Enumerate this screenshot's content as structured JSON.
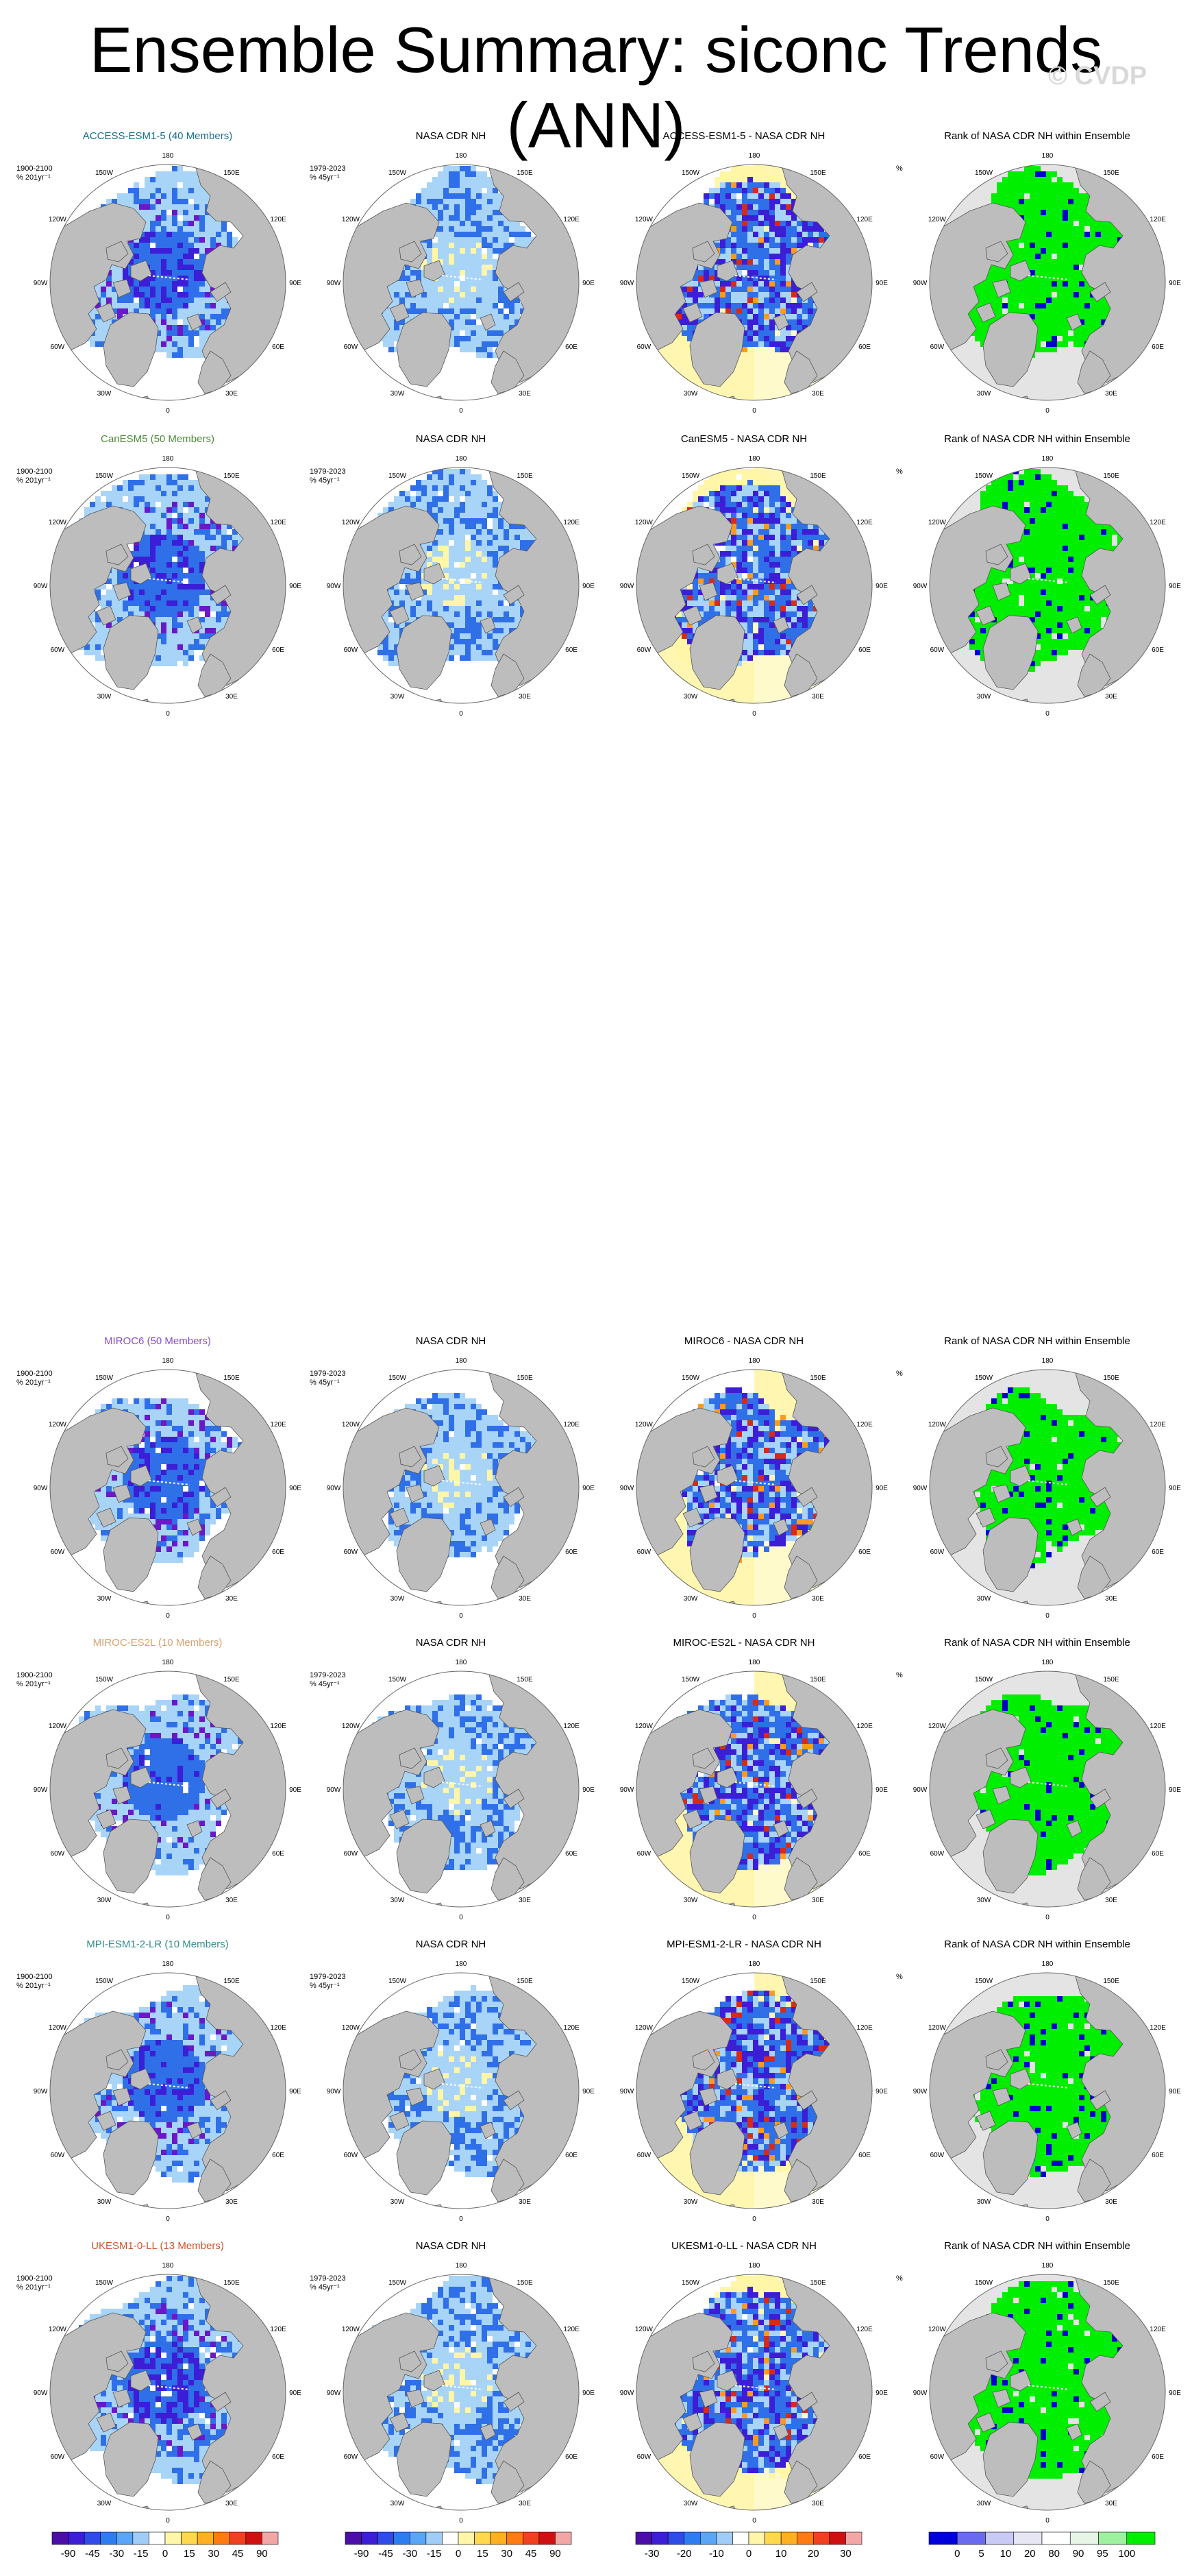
{
  "title": "Ensemble Summary: siconc Trends (ANN)",
  "watermark": "© CVDP",
  "longitude_labels": [
    "180",
    "150E",
    "120E",
    "90E",
    "60E",
    "30E",
    "0",
    "30W",
    "60W",
    "90W",
    "120W",
    "150W"
  ],
  "rows": [
    {
      "model": "ACCESS-ESM1-5",
      "title": "ACCESS-ESM1-5 (40 Members)",
      "color": "#1a6f8a",
      "units_model": "1900-2100\n% 201yr⁻¹",
      "units_obs": "1979-2023\n% 45yr⁻¹",
      "obs_title": "NASA CDR NH",
      "diff_title": "ACCESS-ESM1-5 - NASA CDR NH",
      "rank_title": "Rank of NASA CDR NH within Ensemble",
      "rank_units": "%"
    },
    {
      "model": "CanESM5",
      "title": "CanESM5 (50 Members)",
      "color": "#4e8a3a",
      "units_model": "1900-2100\n% 201yr⁻¹",
      "units_obs": "1979-2023\n% 45yr⁻¹",
      "obs_title": "NASA CDR NH",
      "diff_title": "CanESM5 - NASA CDR NH",
      "rank_title": "Rank of NASA CDR NH within Ensemble",
      "rank_units": "%"
    },
    {
      "model": "MIROC6",
      "title": "MIROC6 (50 Members)",
      "color": "#8a4fc7",
      "units_model": "1900-2100\n% 201yr⁻¹",
      "units_obs": "1979-2023\n% 45yr⁻¹",
      "obs_title": "NASA CDR NH",
      "diff_title": "MIROC6 - NASA CDR NH",
      "rank_title": "Rank of NASA CDR NH within Ensemble",
      "rank_units": "%"
    },
    {
      "model": "MIROC-ES2L",
      "title": "MIROC-ES2L (10 Members)",
      "color": "#d4a373",
      "units_model": "1900-2100\n% 201yr⁻¹",
      "units_obs": "1979-2023\n% 45yr⁻¹",
      "obs_title": "NASA CDR NH",
      "diff_title": "MIROC-ES2L - NASA CDR NH",
      "rank_title": "Rank of NASA CDR NH within Ensemble",
      "rank_units": "%"
    },
    {
      "model": "MPI-ESM1-2-LR",
      "title": "MPI-ESM1-2-LR (10 Members)",
      "color": "#2f8a8a",
      "units_model": "1900-2100\n% 201yr⁻¹",
      "units_obs": "1979-2023\n% 45yr⁻¹",
      "obs_title": "NASA CDR NH",
      "diff_title": "MPI-ESM1-2-LR - NASA CDR NH",
      "rank_title": "Rank of NASA CDR NH within Ensemble",
      "rank_units": "%"
    },
    {
      "model": "UKESM1-0-LL",
      "title": "UKESM1-0-LL (13 Members)",
      "color": "#d2542a",
      "units_model": "1900-2100\n% 201yr⁻¹",
      "units_obs": "1979-2023\n% 45yr⁻¹",
      "obs_title": "NASA CDR NH",
      "diff_title": "UKESM1-0-LL - NASA CDR NH",
      "rank_title": "Rank of NASA CDR NH within Ensemble",
      "rank_units": "%"
    }
  ],
  "colorbars": [
    {
      "name": "model-trend",
      "ticks": [
        "-90",
        "-45",
        "-30",
        "-15",
        "0",
        "15",
        "30",
        "45",
        "90"
      ],
      "colors": [
        "#4b0ea8",
        "#3b1ed6",
        "#2f4be8",
        "#2c7ef0",
        "#58a6f5",
        "#9fcdf7",
        "#ffffff",
        "#fff6a8",
        "#ffd84d",
        "#ffb020",
        "#ff7a10",
        "#f04020",
        "#d01010",
        "#f3a6a6"
      ]
    },
    {
      "name": "obs-trend",
      "ticks": [
        "-90",
        "-45",
        "-30",
        "-15",
        "0",
        "15",
        "30",
        "45",
        "90"
      ],
      "colors": [
        "#4b0ea8",
        "#3b1ed6",
        "#2f4be8",
        "#2c7ef0",
        "#58a6f5",
        "#9fcdf7",
        "#ffffff",
        "#fff6a8",
        "#ffd84d",
        "#ffb020",
        "#ff7a10",
        "#f04020",
        "#d01010",
        "#f3a6a6"
      ]
    },
    {
      "name": "difference",
      "ticks": [
        "-30",
        "-20",
        "-10",
        "0",
        "10",
        "20",
        "30"
      ],
      "colors": [
        "#4b0ea8",
        "#3b1ed6",
        "#2f4be8",
        "#2c7ef0",
        "#58a6f5",
        "#9fcdf7",
        "#ffffff",
        "#fff6a8",
        "#ffd84d",
        "#ffb020",
        "#ff7a10",
        "#f04020",
        "#d01010",
        "#f3a6a6"
      ]
    },
    {
      "name": "rank",
      "ticks": [
        "0",
        "5",
        "10",
        "20",
        "80",
        "90",
        "95",
        "100"
      ],
      "colors": [
        "#0000dd",
        "#6a6af0",
        "#c9c9f5",
        "#e6e6f5",
        "#ffffff",
        "#e6f5e6",
        "#9df09d",
        "#00ee00"
      ]
    }
  ],
  "palette": {
    "land": "#bdbdbd",
    "ocean": "#ffffff",
    "rank_ocean": "#e4e4e4",
    "blue_dark": "#3b1ed6",
    "blue_mid": "#2f6fe8",
    "blue_light": "#a8d4f7",
    "yellow": "#fff6a8",
    "orange": "#ff9a20",
    "red": "#d82a18",
    "purple": "#6a18c8",
    "green": "#00ee00",
    "rank_blue": "#0000cc"
  }
}
